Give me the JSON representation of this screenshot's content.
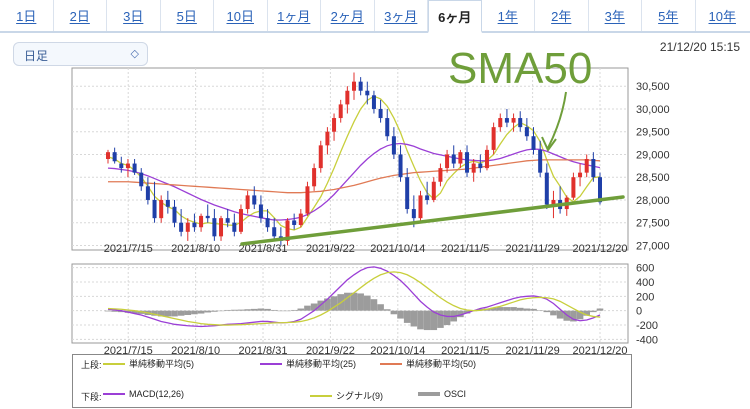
{
  "tabs": [
    {
      "label": "1日"
    },
    {
      "label": "2日"
    },
    {
      "label": "3日"
    },
    {
      "label": "5日"
    },
    {
      "label": "10日"
    },
    {
      "label": "1ヶ月"
    },
    {
      "label": "2ヶ月"
    },
    {
      "label": "3ヶ月"
    },
    {
      "label": "6ヶ月",
      "active": true
    },
    {
      "label": "1年"
    },
    {
      "label": "2年"
    },
    {
      "label": "3年"
    },
    {
      "label": "5年"
    },
    {
      "label": "10年"
    }
  ],
  "period_select": {
    "value": "日足"
  },
  "timestamp": "21/12/20 15:15",
  "annotation": {
    "text": "SMA50"
  },
  "colors": {
    "up": "#e0302c",
    "down": "#1f3fa8",
    "sma5": "#c8cf3c",
    "sma25": "#9b3fd6",
    "sma50": "#e07a55",
    "macd": "#9b3fd6",
    "signal": "#c8cf3c",
    "osci": "#9c9c9c",
    "trend": "#6f9e3a"
  },
  "chart_data": [
    {
      "type": "candlestick",
      "panel": "upper",
      "x_tick_labels": [
        "2021/7/15",
        "2021/8/10",
        "2021/8/31",
        "2021/9/22",
        "2021/10/14",
        "2021/11/5",
        "2021/11/29",
        "2021/12/20"
      ],
      "y_ticks": [
        27000,
        27500,
        28000,
        28500,
        29000,
        29500,
        30000,
        30500
      ],
      "y_tick_labels": [
        "27,000",
        "27,500",
        "28,000",
        "28,500",
        "29,000",
        "29,500",
        "30,000",
        "30,500"
      ],
      "ylim": [
        26900,
        30900
      ],
      "ohlc": [
        [
          28900,
          29100,
          28800,
          29050
        ],
        [
          29050,
          29150,
          28800,
          28850
        ],
        [
          28800,
          28950,
          28600,
          28700
        ],
        [
          28700,
          28900,
          28500,
          28800
        ],
        [
          28800,
          28900,
          28550,
          28600
        ],
        [
          28600,
          28700,
          28200,
          28300
        ],
        [
          28300,
          28500,
          27900,
          28000
        ],
        [
          28000,
          28400,
          27500,
          27600
        ],
        [
          27600,
          28100,
          27500,
          28000
        ],
        [
          28000,
          28200,
          27700,
          27850
        ],
        [
          27850,
          28000,
          27400,
          27500
        ],
        [
          27500,
          27800,
          27200,
          27300
        ],
        [
          27300,
          27600,
          27100,
          27500
        ],
        [
          27500,
          27700,
          27300,
          27400
        ],
        [
          27400,
          27700,
          27300,
          27650
        ],
        [
          27650,
          27900,
          27500,
          27600
        ],
        [
          27600,
          27800,
          27100,
          27200
        ],
        [
          27200,
          27650,
          27100,
          27600
        ],
        [
          27600,
          27800,
          27400,
          27500
        ],
        [
          27500,
          27700,
          27200,
          27300
        ],
        [
          27300,
          27900,
          27250,
          27800
        ],
        [
          27800,
          28200,
          27700,
          28100
        ],
        [
          28100,
          28300,
          27800,
          27900
        ],
        [
          27900,
          28100,
          27500,
          27600
        ],
        [
          27600,
          27800,
          27300,
          27400
        ],
        [
          27400,
          27600,
          27100,
          27200
        ],
        [
          27200,
          27400,
          27000,
          27100
        ],
        [
          27100,
          27600,
          27000,
          27550
        ],
        [
          27550,
          27700,
          27350,
          27450
        ],
        [
          27450,
          27800,
          27400,
          27700
        ],
        [
          27700,
          28400,
          27650,
          28300
        ],
        [
          28300,
          28800,
          28200,
          28700
        ],
        [
          28700,
          29300,
          28600,
          29200
        ],
        [
          29200,
          29600,
          29000,
          29500
        ],
        [
          29500,
          29900,
          29300,
          29800
        ],
        [
          29800,
          30200,
          29700,
          30100
        ],
        [
          30100,
          30500,
          29900,
          30400
        ],
        [
          30400,
          30800,
          30200,
          30600
        ],
        [
          30600,
          30700,
          30300,
          30400
        ],
        [
          30400,
          30600,
          30100,
          30300
        ],
        [
          30300,
          30400,
          29900,
          30000
        ],
        [
          30000,
          30200,
          29700,
          29800
        ],
        [
          29800,
          30000,
          29300,
          29400
        ],
        [
          29400,
          29600,
          28900,
          29000
        ],
        [
          29000,
          29200,
          28400,
          28500
        ],
        [
          28500,
          28700,
          27700,
          27800
        ],
        [
          27800,
          28100,
          27400,
          27600
        ],
        [
          27600,
          28200,
          27500,
          28100
        ],
        [
          28100,
          28400,
          27900,
          28000
        ],
        [
          28000,
          28500,
          27950,
          28400
        ],
        [
          28400,
          28800,
          28300,
          28700
        ],
        [
          28700,
          29100,
          28600,
          29000
        ],
        [
          29000,
          29200,
          28700,
          28800
        ],
        [
          28800,
          29100,
          28700,
          29050
        ],
        [
          29050,
          29200,
          28500,
          28600
        ],
        [
          28600,
          28900,
          28400,
          28800
        ],
        [
          28800,
          29000,
          28600,
          28700
        ],
        [
          28700,
          29200,
          28650,
          29100
        ],
        [
          29100,
          29700,
          29000,
          29600
        ],
        [
          29600,
          29900,
          29500,
          29800
        ],
        [
          29800,
          30000,
          29600,
          29700
        ],
        [
          29700,
          29900,
          29500,
          29800
        ],
        [
          29800,
          29950,
          29500,
          29600
        ],
        [
          29600,
          29800,
          29300,
          29400
        ],
        [
          29400,
          29600,
          29000,
          29100
        ],
        [
          29100,
          29300,
          28500,
          28600
        ],
        [
          28600,
          28800,
          27800,
          27900
        ],
        [
          27900,
          28200,
          27600,
          28000
        ],
        [
          28000,
          28300,
          27700,
          27800
        ],
        [
          27800,
          28100,
          27650,
          28050
        ],
        [
          28050,
          28600,
          28000,
          28500
        ],
        [
          28500,
          28800,
          28300,
          28600
        ],
        [
          28600,
          29000,
          28500,
          28900
        ],
        [
          28900,
          29050,
          28400,
          28500
        ],
        [
          28500,
          28600,
          27900,
          27950
        ]
      ],
      "series": [
        {
          "name": "単純移動平均(5)",
          "values": [
            28950,
            28900,
            28800,
            28760,
            28650,
            28500,
            28300,
            28080,
            27950,
            27850,
            27790,
            27650,
            27560,
            27510,
            27470,
            27500,
            27480,
            27470,
            27450,
            27440,
            27510,
            27630,
            27720,
            27760,
            27760,
            27610,
            27440,
            27370,
            27340,
            27400,
            27620,
            27840,
            28070,
            28370,
            28700,
            29060,
            29400,
            29720,
            30000,
            30190,
            30280,
            30220,
            30060,
            29800,
            29480,
            29080,
            28740,
            28420,
            28160,
            28020,
            28150,
            28420,
            28580,
            28720,
            28810,
            28850,
            28810,
            28870,
            29000,
            29230,
            29440,
            29590,
            29700,
            29630,
            29520,
            29280,
            28880,
            28520,
            28300,
            28060,
            27960,
            28080,
            28290,
            28490,
            28510
          ]
        },
        {
          "name": "単純移動平均(25)",
          "values": [
            28700,
            28690,
            28670,
            28650,
            28620,
            28580,
            28530,
            28470,
            28410,
            28350,
            28290,
            28220,
            28150,
            28080,
            28010,
            27950,
            27890,
            27840,
            27790,
            27740,
            27700,
            27670,
            27640,
            27610,
            27580,
            27560,
            27560,
            27570,
            27590,
            27620,
            27680,
            27760,
            27860,
            27980,
            28120,
            28280,
            28440,
            28600,
            28760,
            28900,
            29020,
            29120,
            29190,
            29230,
            29240,
            29220,
            29180,
            29120,
            29070,
            29020,
            28990,
            28960,
            28930,
            28900,
            28880,
            28870,
            28860,
            28860,
            28880,
            28910,
            28960,
            29010,
            29060,
            29100,
            29120,
            29110,
            29070,
            29010,
            28950,
            28890,
            28840,
            28800,
            28770,
            28740,
            28710
          ]
        },
        {
          "name": "単純移動平均(50)",
          "values": [
            28400,
            28400,
            28400,
            28400,
            28390,
            28380,
            28370,
            28360,
            28350,
            28340,
            28330,
            28320,
            28310,
            28300,
            28290,
            28280,
            28270,
            28260,
            28250,
            28240,
            28230,
            28220,
            28210,
            28200,
            28190,
            28180,
            28170,
            28160,
            28160,
            28160,
            28170,
            28180,
            28190,
            28210,
            28230,
            28260,
            28290,
            28320,
            28360,
            28400,
            28440,
            28480,
            28510,
            28540,
            28560,
            28580,
            28600,
            28610,
            28620,
            28630,
            28640,
            28650,
            28660,
            28670,
            28680,
            28700,
            28720,
            28740,
            28760,
            28780,
            28800,
            28820,
            28840,
            28860,
            28870,
            28880,
            28880,
            28880,
            28880,
            28880,
            28880,
            28880,
            28880,
            28870,
            28860
          ]
        }
      ]
    },
    {
      "type": "line",
      "panel": "lower",
      "y_ticks": [
        -400,
        -200,
        0,
        200,
        400,
        600
      ],
      "y_tick_labels": [
        "-400",
        "-200",
        "0",
        "200",
        "400",
        "600"
      ],
      "ylim": [
        -450,
        650
      ],
      "series": [
        {
          "name": "MACD(12,26)",
          "values": [
            20,
            10,
            0,
            -20,
            -40,
            -60,
            -90,
            -120,
            -150,
            -170,
            -190,
            -200,
            -210,
            -215,
            -220,
            -215,
            -210,
            -200,
            -190,
            -185,
            -180,
            -170,
            -160,
            -150,
            -150,
            -160,
            -170,
            -165,
            -150,
            -120,
            -60,
            0,
            80,
            160,
            250,
            340,
            430,
            500,
            560,
            600,
            610,
            590,
            550,
            490,
            420,
            330,
            230,
            130,
            50,
            -20,
            -60,
            -80,
            -80,
            -60,
            -30,
            0,
            30,
            50,
            80,
            110,
            140,
            170,
            190,
            200,
            205,
            190,
            160,
            100,
            20,
            -60,
            -120,
            -140,
            -130,
            -100,
            -60
          ]
        },
        {
          "name": "シグナル(9)",
          "values": [
            30,
            25,
            20,
            10,
            0,
            -15,
            -30,
            -50,
            -70,
            -90,
            -110,
            -130,
            -150,
            -165,
            -180,
            -190,
            -195,
            -200,
            -200,
            -198,
            -195,
            -190,
            -185,
            -180,
            -175,
            -170,
            -168,
            -165,
            -160,
            -150,
            -130,
            -100,
            -60,
            -10,
            50,
            110,
            180,
            250,
            320,
            390,
            450,
            500,
            530,
            540,
            530,
            500,
            450,
            390,
            320,
            250,
            180,
            120,
            70,
            30,
            10,
            0,
            5,
            20,
            40,
            60,
            90,
            120,
            150,
            170,
            180,
            185,
            180,
            165,
            130,
            80,
            30,
            -20,
            -60,
            -80,
            -90
          ]
        },
        {
          "name": "OSCI",
          "values": [
            -10,
            -15,
            -20,
            -30,
            -40,
            -45,
            -60,
            -70,
            -80,
            -80,
            -80,
            -70,
            -60,
            -50,
            -40,
            -25,
            -15,
            0,
            10,
            13,
            15,
            20,
            25,
            30,
            25,
            10,
            -2,
            0,
            10,
            30,
            70,
            100,
            140,
            170,
            200,
            230,
            250,
            250,
            240,
            210,
            160,
            90,
            20,
            -50,
            -110,
            -170,
            -220,
            -260,
            -270,
            -270,
            -240,
            -200,
            -150,
            -90,
            -40,
            0,
            25,
            30,
            40,
            50,
            50,
            50,
            40,
            30,
            25,
            5,
            -20,
            -65,
            -110,
            -140,
            -150,
            -120,
            -70,
            -20,
            30
          ]
        }
      ]
    }
  ],
  "legend": {
    "upper_label": "上段:",
    "lower_label": "下段:",
    "upper_items": [
      "単純移動平均(5)",
      "単純移動平均(25)",
      "単純移動平均(50)"
    ],
    "lower_items": [
      "MACD(12,26)",
      "シグナル(9)",
      "OSCI"
    ]
  }
}
